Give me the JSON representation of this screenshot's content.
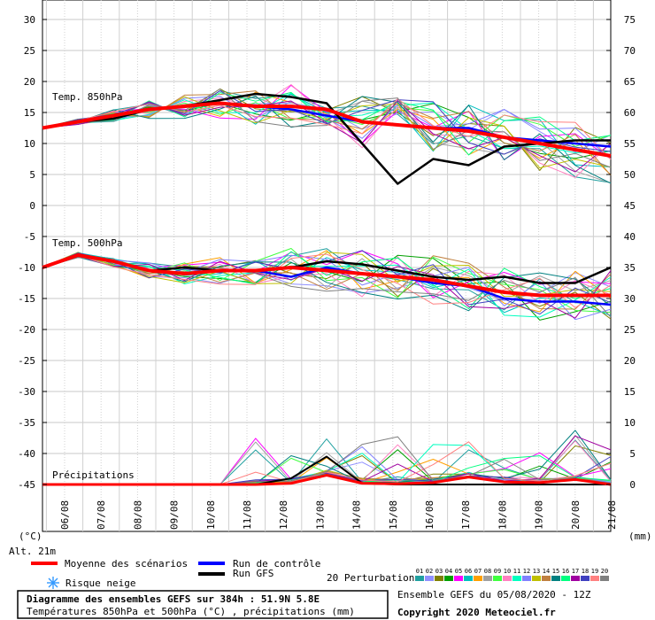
{
  "chart_data": {
    "type": "line",
    "x_dates": [
      "06/08",
      "07/08",
      "08/08",
      "09/08",
      "10/08",
      "11/08",
      "12/08",
      "13/08",
      "14/08",
      "15/08",
      "16/08",
      "17/08",
      "18/08",
      "19/08",
      "20/08",
      "21/08"
    ],
    "left_ticks": [
      "30",
      "25",
      "20",
      "15",
      "10",
      "5",
      "0",
      "-5",
      "-10",
      "-15",
      "-20",
      "-25",
      "-30",
      "-35",
      "-40",
      "-45"
    ],
    "right_ticks": [
      "75",
      "70",
      "65",
      "60",
      "55",
      "50",
      "45",
      "40",
      "35",
      "30",
      "25",
      "20",
      "15",
      "10",
      "5",
      "0"
    ],
    "left_unit": "(°C)",
    "right_unit": "(mm)",
    "alt_label": "Alt. 21m",
    "panel_labels": {
      "t850": "Temp. 850hPa",
      "t500": "Temp. 500hPa",
      "precip": "Précipitations"
    },
    "t850": {
      "mean": [
        12.5,
        13.5,
        14.5,
        15.5,
        16.0,
        16.5,
        16.0,
        16.0,
        15.5,
        13.5,
        13.0,
        12.5,
        12.0,
        11.0,
        10.0,
        9.0,
        8.0
      ],
      "gfs": [
        12.5,
        13.5,
        14.0,
        15.5,
        16.0,
        17.0,
        18.0,
        17.5,
        16.5,
        10.0,
        3.5,
        7.5,
        6.5,
        9.5,
        10.0,
        10.5,
        10.5
      ],
      "control": [
        12.5,
        13.5,
        14.5,
        15.5,
        16.0,
        16.5,
        16.0,
        15.5,
        14.5,
        13.5,
        13.0,
        12.5,
        12.5,
        11.0,
        10.5,
        10.0,
        9.5
      ]
    },
    "t500": {
      "mean": [
        -10.0,
        -8.0,
        -9.0,
        -10.5,
        -11.0,
        -10.5,
        -10.5,
        -10.0,
        -10.5,
        -11.0,
        -11.5,
        -12.0,
        -13.0,
        -14.0,
        -14.5,
        -14.5,
        -14.5
      ],
      "gfs": [
        -10.0,
        -8.0,
        -9.0,
        -10.5,
        -10.0,
        -10.5,
        -10.5,
        -10.0,
        -9.0,
        -9.5,
        -10.5,
        -11.5,
        -12.0,
        -11.5,
        -12.5,
        -12.5,
        -10.0
      ],
      "control": [
        -10.0,
        -8.0,
        -9.0,
        -10.5,
        -11.0,
        -10.5,
        -10.5,
        -11.5,
        -10.0,
        -11.0,
        -11.5,
        -12.5,
        -13.0,
        -15.0,
        -15.5,
        -15.5,
        -16.0
      ]
    },
    "precip": {
      "mean": [
        0,
        0,
        0,
        0,
        0,
        0,
        0,
        0.2,
        1.5,
        0.2,
        0.1,
        0.3,
        1.2,
        0.4,
        0.3,
        0.8,
        0
      ],
      "gfs": [
        0,
        0,
        0,
        0,
        0,
        0,
        0,
        1.0,
        4.5,
        0.2,
        0,
        0,
        0,
        0,
        0,
        0,
        0
      ]
    }
  },
  "legend": {
    "mean": "Moyenne des scénarios",
    "control": "Run de contrôle",
    "gfs": "Run GFS",
    "snow": "Risque neige",
    "perturbations": "20 Perturbations",
    "pert_ids": [
      "01",
      "02",
      "03",
      "04",
      "05",
      "06",
      "07",
      "08",
      "09",
      "10",
      "11",
      "12",
      "13",
      "14",
      "15",
      "16",
      "17",
      "18",
      "19",
      "20"
    ]
  },
  "colors": {
    "mean": "#ff0000",
    "control": "#0000ff",
    "gfs": "#000000",
    "pert": [
      "#20a0a0",
      "#9090ff",
      "#808000",
      "#00a000",
      "#ff00ff",
      "#00c0c0",
      "#ffa000",
      "#a0a0a0",
      "#40ff40",
      "#ff80c0",
      "#00ffc0",
      "#8080ff",
      "#c0c000",
      "#c08040",
      "#008080",
      "#00ff80",
      "#a000a0",
      "#4040c0",
      "#ff8080",
      "#808080"
    ]
  },
  "footer": {
    "title": "Diagramme des ensembles GEFS sur 384h : 51.9N 5.8E",
    "subtitle": "Températures 850hPa et 500hPa (°C) , précipitations (mm)",
    "run": "Ensemble GEFS du 05/08/2020 - 12Z",
    "copyright": "Copyright 2020 Meteociel.fr"
  }
}
